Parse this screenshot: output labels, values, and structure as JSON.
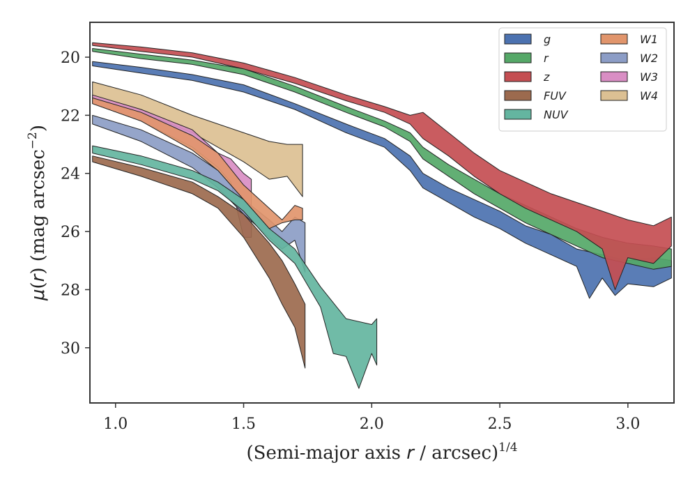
{
  "chart_data": {
    "type": "area",
    "xlabel": "(Semi-major axis r / arcsec)^1/4",
    "xlabel_parts": {
      "main": "(Semi-major axis ",
      "var": "r",
      "rest": " / arcsec)",
      "sup": "1/4"
    },
    "ylabel": "μ(r) (mag arcsec^−2)",
    "ylabel_parts": {
      "mu": "μ",
      "open": "(",
      "var": "r",
      "close": ") (mag arcsec",
      "sup": "−2",
      "end": ")"
    },
    "xlim": [
      0.9,
      3.18
    ],
    "ylim": [
      31.9,
      18.8
    ],
    "xticks": [
      1.0,
      1.5,
      2.0,
      2.5,
      3.0
    ],
    "xtick_labels": [
      "1.0",
      "1.5",
      "2.0",
      "2.5",
      "3.0"
    ],
    "yticks": [
      20,
      22,
      24,
      26,
      28,
      30
    ],
    "ytick_labels": [
      "20",
      "22",
      "24",
      "26",
      "28",
      "30"
    ],
    "y_inverted": true,
    "legend_position": "top-right",
    "legend_columns": 2,
    "series": [
      {
        "name": "g",
        "color": "#4c72b0",
        "upper": [
          [
            0.91,
            20.15
          ],
          [
            1.1,
            20.35
          ],
          [
            1.3,
            20.6
          ],
          [
            1.5,
            20.95
          ],
          [
            1.7,
            21.6
          ],
          [
            1.9,
            22.3
          ],
          [
            2.05,
            22.8
          ],
          [
            2.15,
            23.4
          ],
          [
            2.2,
            24.0
          ],
          [
            2.3,
            24.5
          ],
          [
            2.4,
            24.9
          ],
          [
            2.5,
            25.3
          ],
          [
            2.6,
            25.8
          ],
          [
            2.7,
            26.1
          ],
          [
            2.8,
            26.6
          ],
          [
            2.9,
            26.8
          ],
          [
            3.0,
            27.0
          ],
          [
            3.1,
            26.9
          ],
          [
            3.17,
            27.0
          ]
        ],
        "lower": [
          [
            0.91,
            20.3
          ],
          [
            1.1,
            20.55
          ],
          [
            1.3,
            20.8
          ],
          [
            1.5,
            21.2
          ],
          [
            1.7,
            21.8
          ],
          [
            1.9,
            22.6
          ],
          [
            2.05,
            23.1
          ],
          [
            2.15,
            23.9
          ],
          [
            2.2,
            24.5
          ],
          [
            2.3,
            25.0
          ],
          [
            2.4,
            25.5
          ],
          [
            2.5,
            25.9
          ],
          [
            2.6,
            26.4
          ],
          [
            2.7,
            26.8
          ],
          [
            2.8,
            27.2
          ],
          [
            2.85,
            28.3
          ],
          [
            2.9,
            27.6
          ],
          [
            2.95,
            28.2
          ],
          [
            3.0,
            27.8
          ],
          [
            3.1,
            27.9
          ],
          [
            3.17,
            27.6
          ]
        ]
      },
      {
        "name": "r",
        "color": "#55a868",
        "upper": [
          [
            0.91,
            19.7
          ],
          [
            1.1,
            19.9
          ],
          [
            1.3,
            20.1
          ],
          [
            1.5,
            20.4
          ],
          [
            1.7,
            21.0
          ],
          [
            1.9,
            21.7
          ],
          [
            2.05,
            22.2
          ],
          [
            2.15,
            22.6
          ],
          [
            2.2,
            23.1
          ],
          [
            2.3,
            23.7
          ],
          [
            2.4,
            24.2
          ],
          [
            2.5,
            24.7
          ],
          [
            2.6,
            25.1
          ],
          [
            2.7,
            25.5
          ],
          [
            2.8,
            25.9
          ],
          [
            2.9,
            26.2
          ],
          [
            3.0,
            26.4
          ],
          [
            3.1,
            26.5
          ],
          [
            3.17,
            26.6
          ]
        ],
        "lower": [
          [
            0.91,
            19.8
          ],
          [
            1.1,
            20.05
          ],
          [
            1.3,
            20.25
          ],
          [
            1.5,
            20.6
          ],
          [
            1.7,
            21.2
          ],
          [
            1.9,
            21.9
          ],
          [
            2.05,
            22.4
          ],
          [
            2.15,
            22.9
          ],
          [
            2.2,
            23.5
          ],
          [
            2.3,
            24.1
          ],
          [
            2.4,
            24.7
          ],
          [
            2.5,
            25.2
          ],
          [
            2.6,
            25.7
          ],
          [
            2.7,
            26.1
          ],
          [
            2.8,
            26.5
          ],
          [
            2.9,
            26.9
          ],
          [
            3.0,
            27.1
          ],
          [
            3.1,
            27.3
          ],
          [
            3.17,
            27.2
          ]
        ]
      },
      {
        "name": "z",
        "color": "#c44e52",
        "upper": [
          [
            0.91,
            19.5
          ],
          [
            1.1,
            19.65
          ],
          [
            1.3,
            19.85
          ],
          [
            1.5,
            20.2
          ],
          [
            1.7,
            20.7
          ],
          [
            1.9,
            21.3
          ],
          [
            2.05,
            21.7
          ],
          [
            2.15,
            22.0
          ],
          [
            2.2,
            21.9
          ],
          [
            2.3,
            22.6
          ],
          [
            2.4,
            23.3
          ],
          [
            2.5,
            23.9
          ],
          [
            2.6,
            24.3
          ],
          [
            2.7,
            24.7
          ],
          [
            2.8,
            25.0
          ],
          [
            2.9,
            25.3
          ],
          [
            3.0,
            25.6
          ],
          [
            3.1,
            25.8
          ],
          [
            3.17,
            25.5
          ]
        ],
        "lower": [
          [
            0.91,
            19.6
          ],
          [
            1.1,
            19.8
          ],
          [
            1.3,
            20.0
          ],
          [
            1.5,
            20.4
          ],
          [
            1.7,
            20.9
          ],
          [
            1.9,
            21.5
          ],
          [
            2.05,
            21.9
          ],
          [
            2.15,
            22.3
          ],
          [
            2.2,
            22.8
          ],
          [
            2.3,
            23.4
          ],
          [
            2.4,
            24.1
          ],
          [
            2.5,
            24.7
          ],
          [
            2.6,
            25.2
          ],
          [
            2.7,
            25.6
          ],
          [
            2.8,
            26.0
          ],
          [
            2.9,
            26.6
          ],
          [
            2.95,
            28.0
          ],
          [
            3.0,
            26.9
          ],
          [
            3.1,
            27.1
          ],
          [
            3.17,
            26.5
          ]
        ]
      },
      {
        "name": "FUV",
        "color": "#9c6a4e",
        "upper": [
          [
            0.91,
            23.4
          ],
          [
            1.1,
            23.8
          ],
          [
            1.3,
            24.3
          ],
          [
            1.4,
            24.8
          ],
          [
            1.5,
            25.4
          ],
          [
            1.6,
            26.4
          ],
          [
            1.65,
            27.0
          ],
          [
            1.7,
            27.8
          ],
          [
            1.74,
            28.5
          ]
        ],
        "lower": [
          [
            0.91,
            23.6
          ],
          [
            1.1,
            24.1
          ],
          [
            1.3,
            24.7
          ],
          [
            1.4,
            25.2
          ],
          [
            1.5,
            26.2
          ],
          [
            1.6,
            27.6
          ],
          [
            1.65,
            28.5
          ],
          [
            1.7,
            29.3
          ],
          [
            1.74,
            30.7
          ]
        ]
      },
      {
        "name": "NUV",
        "color": "#64b5a0",
        "upper": [
          [
            0.91,
            23.05
          ],
          [
            1.1,
            23.4
          ],
          [
            1.3,
            23.9
          ],
          [
            1.4,
            24.3
          ],
          [
            1.5,
            24.9
          ],
          [
            1.6,
            25.9
          ],
          [
            1.7,
            26.6
          ],
          [
            1.8,
            27.9
          ],
          [
            1.9,
            29.0
          ],
          [
            2.0,
            29.2
          ],
          [
            2.02,
            29.0
          ]
        ],
        "lower": [
          [
            0.91,
            23.3
          ],
          [
            1.1,
            23.7
          ],
          [
            1.3,
            24.2
          ],
          [
            1.4,
            24.6
          ],
          [
            1.5,
            25.3
          ],
          [
            1.6,
            26.3
          ],
          [
            1.7,
            27.1
          ],
          [
            1.8,
            28.6
          ],
          [
            1.85,
            30.2
          ],
          [
            1.9,
            30.3
          ],
          [
            1.95,
            31.4
          ],
          [
            2.0,
            30.2
          ],
          [
            2.02,
            30.6
          ]
        ]
      },
      {
        "name": "W1",
        "color": "#e1956c",
        "upper": [
          [
            0.91,
            21.4
          ],
          [
            1.1,
            21.9
          ],
          [
            1.3,
            22.7
          ],
          [
            1.4,
            23.3
          ],
          [
            1.5,
            24.4
          ],
          [
            1.6,
            25.2
          ],
          [
            1.65,
            25.6
          ],
          [
            1.7,
            25.1
          ],
          [
            1.73,
            25.2
          ]
        ],
        "lower": [
          [
            0.91,
            21.6
          ],
          [
            1.1,
            22.2
          ],
          [
            1.3,
            23.2
          ],
          [
            1.4,
            23.9
          ],
          [
            1.5,
            24.9
          ],
          [
            1.6,
            25.9
          ],
          [
            1.65,
            25.7
          ],
          [
            1.7,
            25.6
          ],
          [
            1.73,
            25.6
          ]
        ]
      },
      {
        "name": "W2",
        "color": "#8c9dc6",
        "upper": [
          [
            0.91,
            22.0
          ],
          [
            1.1,
            22.5
          ],
          [
            1.3,
            23.3
          ],
          [
            1.4,
            23.9
          ],
          [
            1.5,
            24.9
          ],
          [
            1.6,
            25.6
          ],
          [
            1.65,
            26.0
          ],
          [
            1.7,
            25.5
          ],
          [
            1.74,
            25.7
          ]
        ],
        "lower": [
          [
            0.91,
            22.3
          ],
          [
            1.1,
            22.9
          ],
          [
            1.3,
            23.8
          ],
          [
            1.4,
            24.5
          ],
          [
            1.5,
            25.4
          ],
          [
            1.6,
            26.2
          ],
          [
            1.65,
            26.6
          ],
          [
            1.7,
            26.3
          ],
          [
            1.74,
            27.4
          ]
        ]
      },
      {
        "name": "W3",
        "color": "#d98ec4",
        "upper": [
          [
            0.91,
            21.3
          ],
          [
            1.1,
            21.8
          ],
          [
            1.3,
            22.5
          ],
          [
            1.4,
            23.3
          ],
          [
            1.45,
            23.5
          ],
          [
            1.5,
            24.0
          ],
          [
            1.53,
            24.2
          ]
        ],
        "lower": [
          [
            0.91,
            21.6
          ],
          [
            1.1,
            22.2
          ],
          [
            1.3,
            23.1
          ],
          [
            1.4,
            23.8
          ],
          [
            1.45,
            24.3
          ],
          [
            1.5,
            26.2
          ],
          [
            1.53,
            26.2
          ]
        ]
      },
      {
        "name": "W4",
        "color": "#dcc093",
        "upper": [
          [
            0.91,
            20.85
          ],
          [
            1.1,
            21.3
          ],
          [
            1.3,
            22.0
          ],
          [
            1.5,
            22.6
          ],
          [
            1.6,
            22.9
          ],
          [
            1.67,
            23.0
          ],
          [
            1.73,
            23.0
          ]
        ],
        "lower": [
          [
            0.91,
            21.4
          ],
          [
            1.1,
            21.9
          ],
          [
            1.3,
            22.6
          ],
          [
            1.5,
            23.6
          ],
          [
            1.6,
            24.2
          ],
          [
            1.67,
            24.1
          ],
          [
            1.73,
            24.8
          ]
        ]
      }
    ]
  }
}
